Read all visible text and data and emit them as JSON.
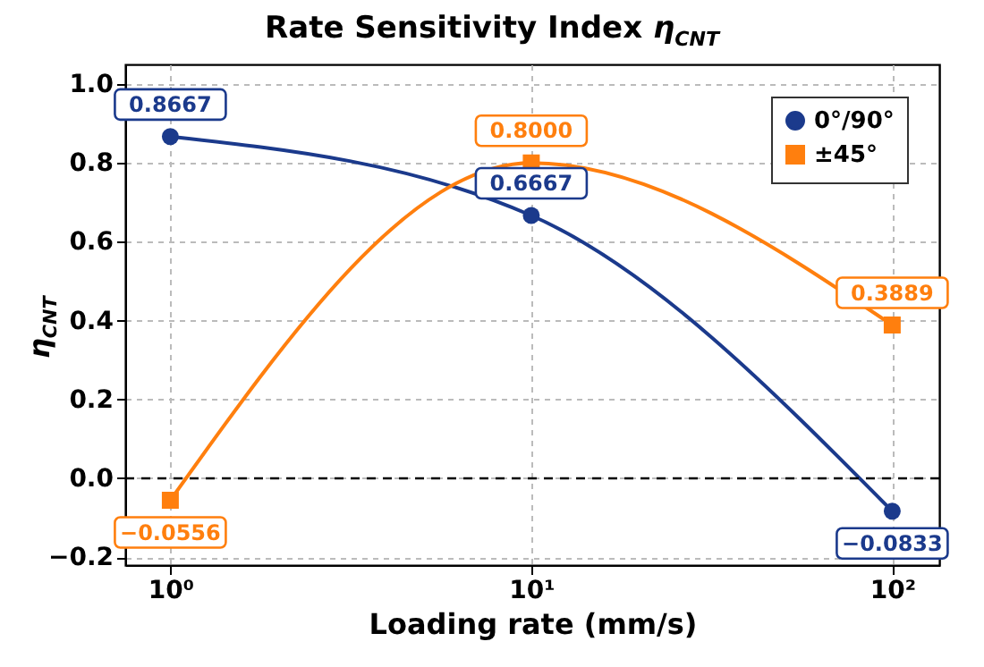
{
  "chart_data": {
    "type": "line",
    "title": "Rate Sensitivity Index η$_{CNT}$",
    "xlabel": "Loading rate (mm/s)",
    "ylabel": "η$_{CNT}$",
    "x": [
      1,
      10,
      100
    ],
    "series": [
      {
        "name": "0°/90°",
        "color": "#1b3a8c",
        "marker": "circle",
        "values": [
          0.8667,
          0.6667,
          -0.0833
        ]
      },
      {
        "name": "±45°",
        "color": "#ff7f0e",
        "marker": "square",
        "values": [
          -0.0556,
          0.8,
          0.3889
        ]
      }
    ],
    "log": "x",
    "xlim": [
      0.75,
      135
    ],
    "xticks": [
      {
        "value": 1,
        "label": "10⁰"
      },
      {
        "value": 10,
        "label": "10¹"
      },
      {
        "value": 100,
        "label": "10²"
      }
    ],
    "ylim": [
      -0.22,
      1.05
    ],
    "yticks": [
      -0.2,
      {
        "value": 0,
        "label": "0.0"
      },
      0.2,
      0.4,
      0.6,
      0.8,
      {
        "value": 1,
        "label": "1.0"
      }
    ],
    "ref_lines": [
      {
        "axis": "y",
        "value": 0,
        "label": null,
        "color": "#000000",
        "line_style": "dashed"
      }
    ],
    "grid": true,
    "legend": "top right",
    "line_style": "solid",
    "data_labels": false,
    "value_labels": [
      [
        "0.8667",
        "0.6667",
        "−0.0833"
      ],
      [
        "−0.0556",
        "0.8000",
        "0.3889"
      ]
    ]
  }
}
